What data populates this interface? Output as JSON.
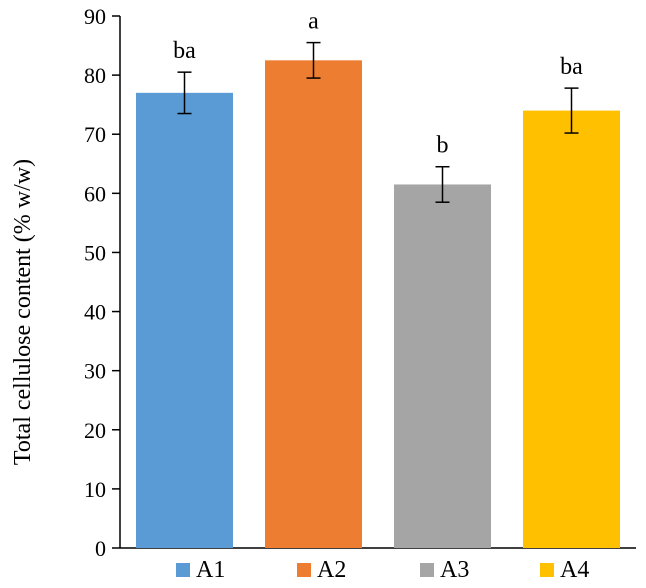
{
  "chart_data": {
    "type": "bar",
    "title": "",
    "xlabel": "",
    "ylabel": "Total cellulose content (% w/w)",
    "ylim": [
      0,
      90
    ],
    "yticks": [
      0,
      10,
      20,
      30,
      40,
      50,
      60,
      70,
      80,
      90
    ],
    "categories": [
      "A1",
      "A2",
      "A3",
      "A4"
    ],
    "values": [
      77,
      82.5,
      61.5,
      74
    ],
    "errors": [
      3.5,
      3,
      3,
      3.8
    ],
    "significance": [
      "ba",
      "a",
      "b",
      "ba"
    ],
    "colors": [
      "#5B9BD5",
      "#ED7D31",
      "#A5A5A5",
      "#FFC000"
    ],
    "grid": false,
    "legend": "bottom"
  }
}
